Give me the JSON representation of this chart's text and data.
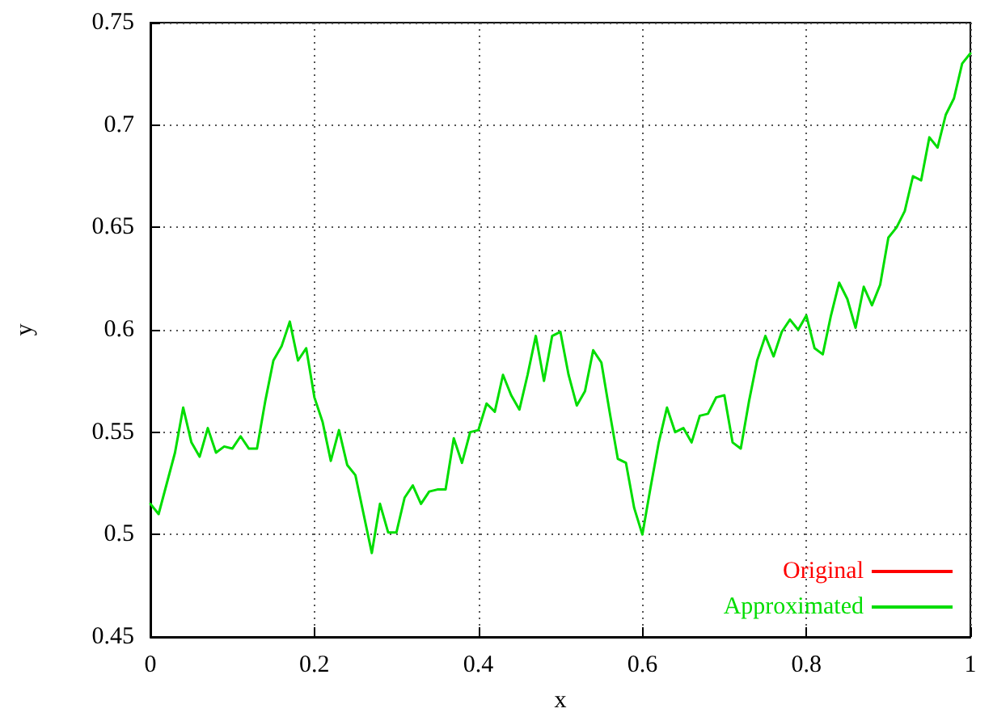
{
  "chart_data": {
    "type": "line",
    "xlabel": "x",
    "ylabel": "y",
    "x": [
      0,
      0.01,
      0.02,
      0.03,
      0.04,
      0.05,
      0.06,
      0.07,
      0.08,
      0.09,
      0.1,
      0.11,
      0.12,
      0.13,
      0.14,
      0.15,
      0.16,
      0.17,
      0.18,
      0.19,
      0.2,
      0.21,
      0.22,
      0.23,
      0.24,
      0.25,
      0.26,
      0.27,
      0.28,
      0.29,
      0.3,
      0.31,
      0.32,
      0.33,
      0.34,
      0.35,
      0.36,
      0.37,
      0.38,
      0.39,
      0.4,
      0.41,
      0.42,
      0.43,
      0.44,
      0.45,
      0.46,
      0.47,
      0.48,
      0.49,
      0.5,
      0.51,
      0.52,
      0.53,
      0.54,
      0.55,
      0.56,
      0.57,
      0.58,
      0.59,
      0.6,
      0.61,
      0.62,
      0.63,
      0.64,
      0.65,
      0.66,
      0.67,
      0.68,
      0.69,
      0.7,
      0.71,
      0.72,
      0.73,
      0.74,
      0.75,
      0.76,
      0.77,
      0.78,
      0.79,
      0.8,
      0.81,
      0.82,
      0.83,
      0.84,
      0.85,
      0.86,
      0.87,
      0.88,
      0.89,
      0.9,
      0.91,
      0.92,
      0.93,
      0.94,
      0.95,
      0.96,
      0.97,
      0.98,
      0.99,
      1
    ],
    "series": [
      {
        "name": "Original",
        "color": "#ff0000",
        "values": [
          null,
          null,
          null,
          null,
          null,
          null,
          null,
          null,
          null,
          null,
          null,
          null,
          null,
          null,
          null,
          null,
          null,
          null,
          null,
          null,
          null,
          null,
          null,
          null,
          null,
          null,
          null,
          null,
          null,
          null,
          null,
          null,
          null,
          null,
          null,
          null,
          null,
          null,
          null,
          null,
          null,
          null,
          null,
          null,
          null,
          null,
          null,
          null,
          null,
          null,
          null,
          null,
          null,
          null,
          null,
          null,
          null,
          null,
          null,
          null,
          null,
          null,
          null,
          null,
          null,
          null,
          null,
          null,
          null,
          null,
          null,
          null,
          null,
          null,
          null,
          null,
          null,
          null,
          null,
          null,
          null,
          null,
          null,
          null,
          null,
          null,
          null,
          null,
          null,
          null,
          null,
          null,
          null,
          null,
          null,
          null,
          null,
          null,
          null,
          null,
          null
        ]
      },
      {
        "name": "Approximated",
        "color": "#00dd00",
        "values": [
          0.515,
          0.51,
          0.525,
          0.54,
          0.562,
          0.545,
          0.538,
          0.552,
          0.54,
          0.543,
          0.542,
          0.548,
          0.542,
          0.542,
          0.565,
          0.585,
          0.592,
          0.604,
          0.585,
          0.591,
          0.567,
          0.555,
          0.536,
          0.551,
          0.534,
          0.529,
          0.51,
          0.491,
          0.515,
          0.501,
          0.501,
          0.518,
          0.524,
          0.515,
          0.521,
          0.522,
          0.522,
          0.547,
          0.535,
          0.55,
          0.551,
          0.564,
          0.56,
          0.578,
          0.568,
          0.561,
          0.578,
          0.597,
          0.575,
          0.597,
          0.599,
          0.578,
          0.563,
          0.57,
          0.59,
          0.584,
          0.56,
          0.537,
          0.535,
          0.513,
          0.5,
          0.523,
          0.545,
          0.562,
          0.55,
          0.552,
          0.545,
          0.558,
          0.559,
          0.567,
          0.568,
          0.545,
          0.542,
          0.565,
          0.585,
          0.597,
          0.587,
          0.599,
          0.605,
          0.6,
          0.607,
          0.591,
          0.588,
          0.607,
          0.623,
          0.615,
          0.601,
          0.621,
          0.612,
          0.622,
          0.645,
          0.65,
          0.658,
          0.675,
          0.673,
          0.694,
          0.689,
          0.705,
          0.713,
          0.73,
          0.735
        ]
      }
    ],
    "xlim": [
      0,
      1
    ],
    "xticks": [
      0,
      0.2,
      0.4,
      0.6,
      0.8,
      1
    ],
    "ylim": [
      0.45,
      0.75
    ],
    "yticks": [
      0.45,
      0.5,
      0.55,
      0.6,
      0.65,
      0.7,
      0.75
    ],
    "grid": true,
    "legend": "bottom right",
    "marker": "none",
    "line_style": "solid"
  }
}
